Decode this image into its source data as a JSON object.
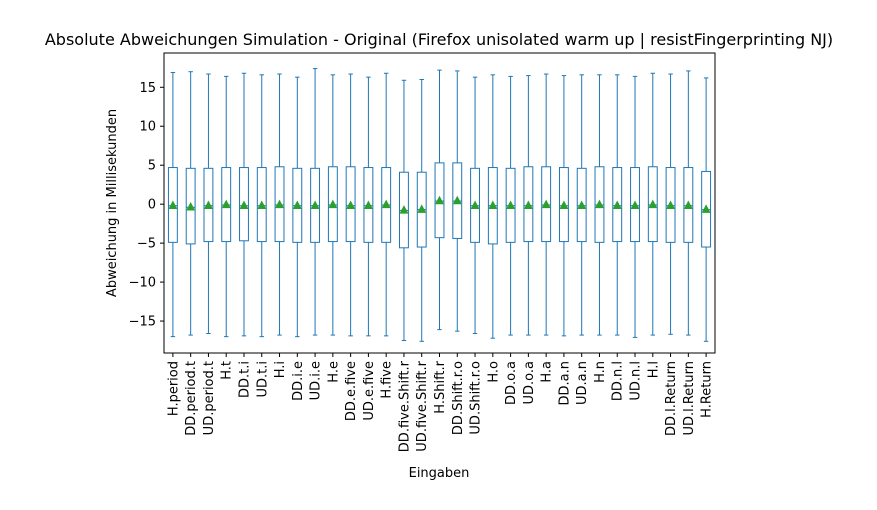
{
  "chart_data": {
    "type": "box",
    "title": "Absolute Abweichungen Simulation - Original (Firefox unisolated warm up | resistFingerprinting NJ)",
    "xlabel": "Eingaben",
    "ylabel": "Abweichung in Millisekunden",
    "ylim": [
      -19.1,
      19.4
    ],
    "yticks": [
      -15,
      -10,
      -5,
      0,
      5,
      10,
      15
    ],
    "grid": false,
    "colors": {
      "box": "#1f77b4",
      "mean": "#2ca02c",
      "axis": "#000000"
    },
    "categories": [
      "H.period",
      "DD.period.t",
      "UD.period.t",
      "H.t",
      "DD.t.i",
      "UD.t.i",
      "H.i",
      "DD.i.e",
      "UD.i.e",
      "H.e",
      "DD.e.five",
      "UD.e.five",
      "H.five",
      "DD.five.Shift.r",
      "UD.five.Shift.r",
      "H.Shift.r",
      "DD.Shift.r.o",
      "UD.Shift.r.o",
      "H.o",
      "DD.o.a",
      "UD.o.a",
      "H.a",
      "DD.a.n",
      "UD.a.n",
      "H.n",
      "DD.n.l",
      "UD.n.l",
      "H.l",
      "DD.l.Return",
      "UD.l.Return",
      "H.Return"
    ],
    "boxes": [
      {
        "whislo": -17.0,
        "q1": -4.9,
        "med": -0.2,
        "q3": 4.7,
        "whishi": 16.9,
        "mean": -0.1
      },
      {
        "whislo": -16.8,
        "q1": -5.1,
        "med": -0.4,
        "q3": 4.6,
        "whishi": 17.0,
        "mean": -0.3
      },
      {
        "whislo": -16.6,
        "q1": -4.8,
        "med": -0.2,
        "q3": 4.6,
        "whishi": 16.7,
        "mean": -0.1
      },
      {
        "whislo": -17.0,
        "q1": -4.8,
        "med": -0.1,
        "q3": 4.7,
        "whishi": 16.4,
        "mean": 0.0
      },
      {
        "whislo": -16.9,
        "q1": -4.7,
        "med": -0.2,
        "q3": 4.7,
        "whishi": 16.8,
        "mean": -0.1
      },
      {
        "whislo": -17.0,
        "q1": -4.8,
        "med": -0.2,
        "q3": 4.7,
        "whishi": 16.6,
        "mean": -0.1
      },
      {
        "whislo": -16.8,
        "q1": -4.8,
        "med": -0.1,
        "q3": 4.8,
        "whishi": 16.7,
        "mean": 0.0
      },
      {
        "whislo": -17.0,
        "q1": -4.9,
        "med": -0.2,
        "q3": 4.6,
        "whishi": 16.3,
        "mean": -0.1
      },
      {
        "whislo": -16.8,
        "q1": -4.9,
        "med": -0.2,
        "q3": 4.6,
        "whishi": 17.4,
        "mean": -0.1
      },
      {
        "whislo": -16.8,
        "q1": -4.8,
        "med": -0.1,
        "q3": 4.8,
        "whishi": 16.6,
        "mean": 0.0
      },
      {
        "whislo": -16.9,
        "q1": -4.8,
        "med": -0.2,
        "q3": 4.8,
        "whishi": 16.7,
        "mean": -0.1
      },
      {
        "whislo": -16.9,
        "q1": -4.9,
        "med": -0.2,
        "q3": 4.7,
        "whishi": 16.3,
        "mean": -0.1
      },
      {
        "whislo": -16.9,
        "q1": -4.9,
        "med": -0.1,
        "q3": 4.7,
        "whishi": 16.8,
        "mean": 0.0
      },
      {
        "whislo": -17.5,
        "q1": -5.6,
        "med": -0.8,
        "q3": 4.1,
        "whishi": 15.9,
        "mean": -0.7
      },
      {
        "whislo": -17.6,
        "q1": -5.5,
        "med": -0.7,
        "q3": 4.1,
        "whishi": 16.0,
        "mean": -0.6
      },
      {
        "whislo": -16.1,
        "q1": -4.3,
        "med": 0.4,
        "q3": 5.3,
        "whishi": 17.2,
        "mean": 0.5
      },
      {
        "whislo": -16.3,
        "q1": -4.4,
        "med": 0.4,
        "q3": 5.3,
        "whishi": 17.1,
        "mean": 0.5
      },
      {
        "whislo": -16.6,
        "q1": -4.9,
        "med": -0.2,
        "q3": 4.6,
        "whishi": 16.3,
        "mean": -0.1
      },
      {
        "whislo": -17.2,
        "q1": -5.1,
        "med": -0.2,
        "q3": 4.7,
        "whishi": 16.6,
        "mean": -0.1
      },
      {
        "whislo": -16.8,
        "q1": -4.9,
        "med": -0.2,
        "q3": 4.6,
        "whishi": 16.4,
        "mean": -0.1
      },
      {
        "whislo": -16.8,
        "q1": -4.8,
        "med": -0.2,
        "q3": 4.8,
        "whishi": 16.5,
        "mean": -0.1
      },
      {
        "whislo": -16.8,
        "q1": -4.8,
        "med": -0.1,
        "q3": 4.8,
        "whishi": 16.7,
        "mean": 0.0
      },
      {
        "whislo": -16.9,
        "q1": -4.8,
        "med": -0.2,
        "q3": 4.7,
        "whishi": 16.5,
        "mean": -0.1
      },
      {
        "whislo": -16.8,
        "q1": -4.8,
        "med": -0.2,
        "q3": 4.6,
        "whishi": 16.6,
        "mean": -0.1
      },
      {
        "whislo": -16.8,
        "q1": -4.9,
        "med": -0.1,
        "q3": 4.8,
        "whishi": 16.6,
        "mean": 0.0
      },
      {
        "whislo": -16.8,
        "q1": -4.8,
        "med": -0.2,
        "q3": 4.7,
        "whishi": 16.6,
        "mean": -0.1
      },
      {
        "whislo": -17.1,
        "q1": -4.8,
        "med": -0.2,
        "q3": 4.7,
        "whishi": 16.4,
        "mean": -0.1
      },
      {
        "whislo": -16.8,
        "q1": -4.8,
        "med": -0.1,
        "q3": 4.8,
        "whishi": 16.8,
        "mean": 0.0
      },
      {
        "whislo": -16.7,
        "q1": -4.9,
        "med": -0.2,
        "q3": 4.7,
        "whishi": 16.7,
        "mean": -0.1
      },
      {
        "whislo": -16.8,
        "q1": -4.9,
        "med": -0.2,
        "q3": 4.7,
        "whishi": 17.1,
        "mean": -0.1
      },
      {
        "whislo": -17.6,
        "q1": -5.5,
        "med": -0.7,
        "q3": 4.2,
        "whishi": 16.2,
        "mean": -0.6
      }
    ]
  }
}
